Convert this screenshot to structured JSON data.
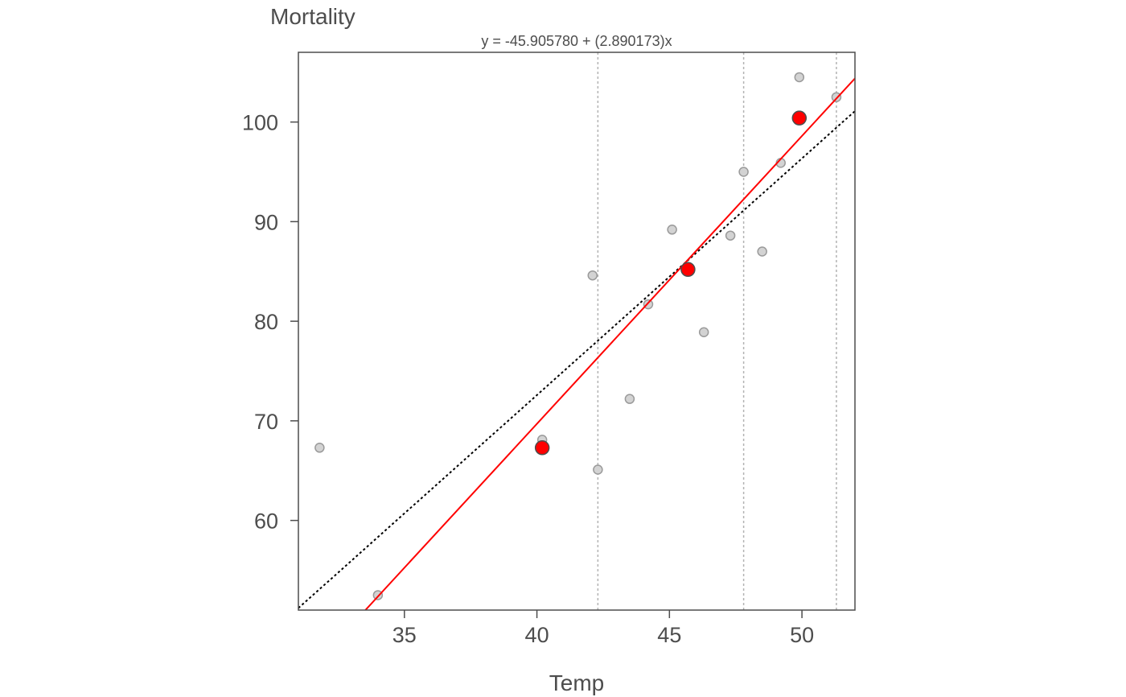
{
  "chart_data": {
    "type": "scatter",
    "title": "Mortality",
    "subtitle": "y = -45.905780 + (2.890173)x",
    "xlabel": "Temp",
    "ylabel": "Mortality",
    "xlim": [
      31,
      52
    ],
    "ylim": [
      51,
      107
    ],
    "x_ticks": [
      35,
      40,
      45,
      50
    ],
    "y_ticks": [
      60,
      70,
      80,
      90,
      100
    ],
    "grid": false,
    "cut_lines_x": [
      42.3,
      47.8,
      51.3
    ],
    "points": [
      {
        "x": 31.8,
        "y": 67.3
      },
      {
        "x": 34.0,
        "y": 52.5
      },
      {
        "x": 40.2,
        "y": 68.1
      },
      {
        "x": 42.1,
        "y": 84.6
      },
      {
        "x": 42.3,
        "y": 65.1
      },
      {
        "x": 43.5,
        "y": 72.2
      },
      {
        "x": 44.2,
        "y": 81.7
      },
      {
        "x": 45.1,
        "y": 89.2
      },
      {
        "x": 46.3,
        "y": 78.9
      },
      {
        "x": 47.3,
        "y": 88.6
      },
      {
        "x": 47.8,
        "y": 95.0
      },
      {
        "x": 48.5,
        "y": 87.0
      },
      {
        "x": 49.2,
        "y": 95.9
      },
      {
        "x": 49.9,
        "y": 104.5
      },
      {
        "x": 51.3,
        "y": 102.5
      }
    ],
    "summary_points": [
      {
        "x": 40.2,
        "y": 67.3
      },
      {
        "x": 45.7,
        "y": 85.2
      },
      {
        "x": 49.9,
        "y": 100.4
      }
    ],
    "resistant_line": {
      "intercept": -45.90578,
      "slope": 2.890173,
      "color": "#ff0000"
    },
    "ls_line": {
      "x1": 31,
      "y1": 51.2,
      "x2": 52,
      "y2": 101.1,
      "color": "#000000"
    },
    "colors": {
      "points_fill": "#d3d3d3",
      "points_stroke": "#9a9a9a",
      "summary_fill": "#ff0000",
      "axis": "#4d4d4d",
      "cut_lines": "#b3b3b3"
    }
  }
}
